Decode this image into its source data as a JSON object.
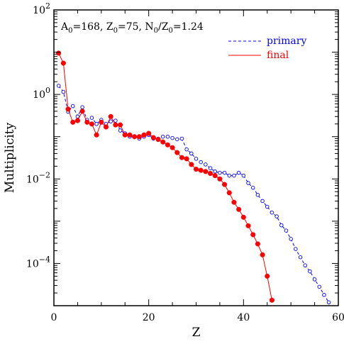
{
  "chart_data": {
    "type": "line",
    "annotation_parts": [
      {
        "text": "A",
        "sub": "0",
        "val": "=168, "
      },
      {
        "text": "Z",
        "sub": "0",
        "val": "=75, "
      },
      {
        "text": "N",
        "sub": "0",
        "val": "/Z"
      },
      {
        "text": "",
        "sub": "0",
        "val": "=1.24"
      }
    ],
    "xlabel": "Z",
    "ylabel": "Multiplicity",
    "xlim": [
      0,
      60
    ],
    "ylim_log10": [
      -5,
      2
    ],
    "y_scale": "log",
    "x_ticks": [
      0,
      20,
      40,
      60
    ],
    "y_ticks_log10": [
      2,
      0,
      -2,
      -4
    ],
    "y_tick_base": "10",
    "y_tick_exponents": [
      "2",
      "0",
      "−2",
      "−4"
    ],
    "legend_position": "top-right",
    "series": [
      {
        "name": "primary",
        "color": "#0000ff",
        "line_style": "dashed",
        "marker": "open-circle",
        "x": [
          1,
          2,
          3,
          4,
          5,
          6,
          7,
          8,
          9,
          10,
          11,
          12,
          13,
          14,
          15,
          16,
          17,
          18,
          19,
          20,
          21,
          22,
          23,
          24,
          25,
          26,
          27,
          28,
          29,
          30,
          31,
          32,
          33,
          34,
          35,
          36,
          37,
          38,
          39,
          40,
          41,
          42,
          43,
          44,
          45,
          46,
          47,
          48,
          49,
          50,
          51,
          52,
          53,
          54,
          55,
          56,
          57,
          58
        ],
        "y": [
          1.6,
          1.15,
          0.39,
          0.53,
          0.3,
          0.5,
          0.25,
          0.28,
          0.2,
          0.25,
          0.2,
          0.23,
          0.24,
          0.14,
          0.12,
          0.1,
          0.1,
          0.09,
          0.1,
          0.11,
          0.09,
          0.09,
          0.1,
          0.1,
          0.093,
          0.087,
          0.09,
          0.05,
          0.04,
          0.03,
          0.025,
          0.022,
          0.018,
          0.015,
          0.014,
          0.014,
          0.012,
          0.012,
          0.014,
          0.012,
          0.008,
          0.0062,
          0.0042,
          0.003,
          0.0022,
          0.0016,
          0.0013,
          0.0008,
          0.0006,
          0.00038,
          0.00022,
          0.00014,
          9e-05,
          6.5e-05,
          4.2e-05,
          2.8e-05,
          1.8e-05,
          1.2e-05
        ]
      },
      {
        "name": "final",
        "color": "#ff0000",
        "line_style": "solid",
        "marker": "filled-circle",
        "x": [
          1,
          2,
          3,
          4,
          5,
          6,
          7,
          8,
          9,
          10,
          11,
          12,
          13,
          14,
          15,
          16,
          17,
          18,
          19,
          20,
          21,
          22,
          23,
          24,
          25,
          26,
          27,
          28,
          29,
          30,
          31,
          32,
          33,
          34,
          35,
          36,
          37,
          38,
          39,
          40,
          41,
          42,
          43,
          44,
          45,
          46
        ],
        "y": [
          9.5,
          5.5,
          0.45,
          0.22,
          0.24,
          0.4,
          0.22,
          0.2,
          0.11,
          0.22,
          0.17,
          0.3,
          0.19,
          0.19,
          0.11,
          0.11,
          0.1,
          0.1,
          0.11,
          0.12,
          0.095,
          0.086,
          0.075,
          0.064,
          0.055,
          0.042,
          0.032,
          0.03,
          0.022,
          0.017,
          0.016,
          0.015,
          0.0135,
          0.012,
          0.01,
          0.0074,
          0.0047,
          0.0028,
          0.0019,
          0.00124,
          0.00078,
          0.00048,
          0.00029,
          0.00016,
          5e-05,
          1.35e-05
        ]
      }
    ]
  }
}
